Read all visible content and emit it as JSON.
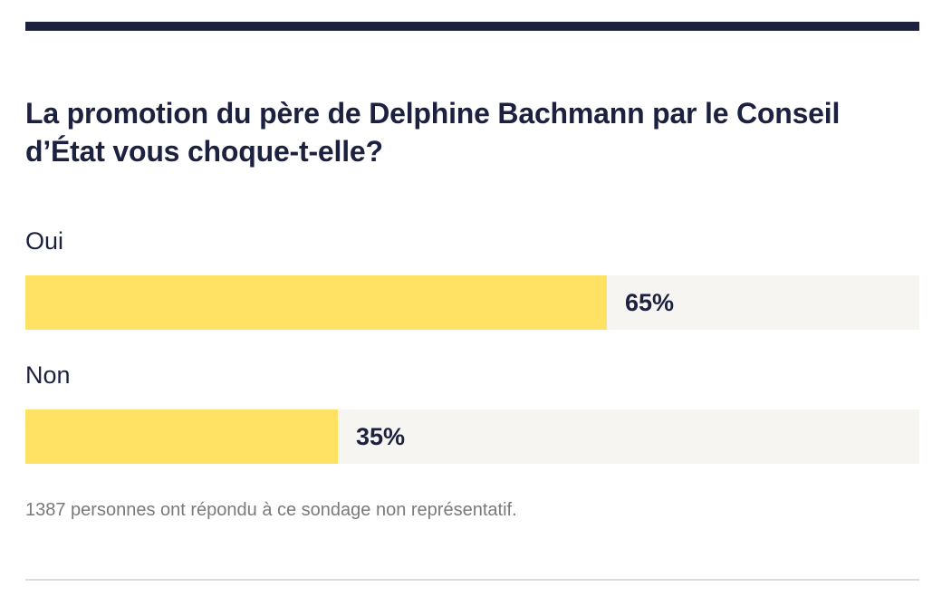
{
  "poll": {
    "question": "La promotion du père de Delphine Bachmann par le Conseil d’État vous choque-t-elle?",
    "options": [
      {
        "label": "Oui",
        "percent": 65,
        "percent_text": "65%"
      },
      {
        "label": "Non",
        "percent": 35,
        "percent_text": "35%"
      }
    ],
    "footnote": "1387 personnes ont répondu à ce sondage non représentatif."
  },
  "colors": {
    "accent_dark": "#1c2140",
    "bar_fill": "#ffe263",
    "bar_track": "#f6f5f2",
    "footnote_text": "#7a7a7a",
    "divider": "#dcdcdc"
  }
}
